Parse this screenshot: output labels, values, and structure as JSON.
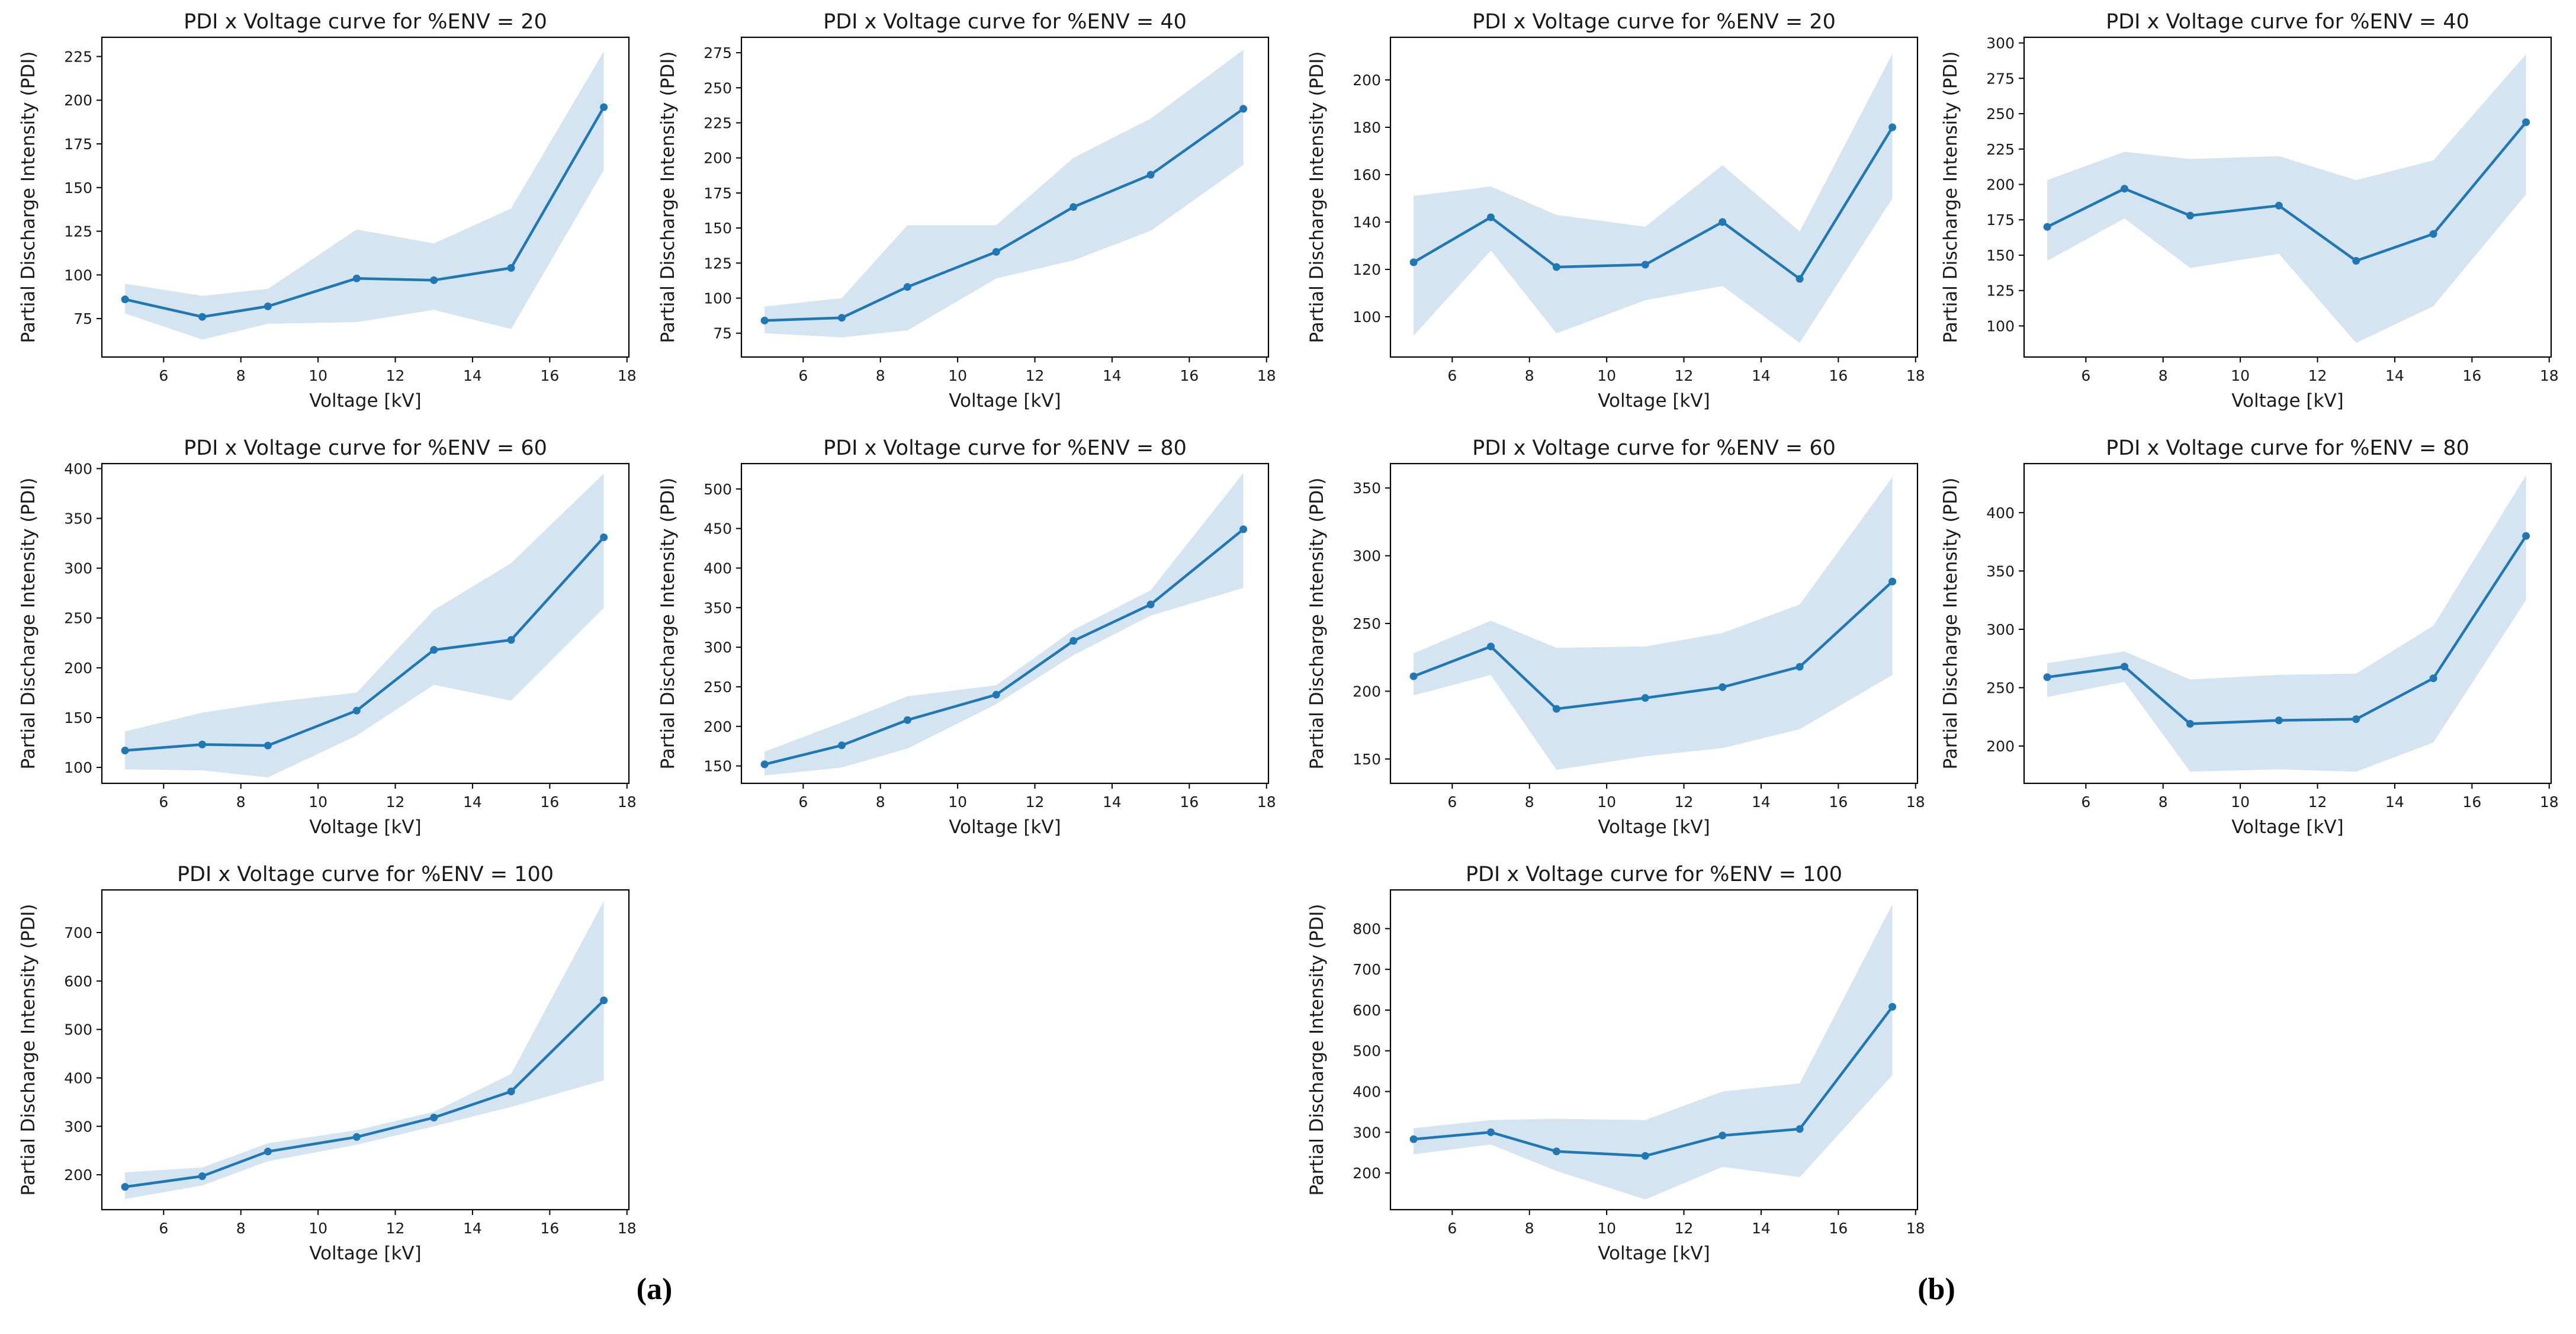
{
  "figure": {
    "xlabel": "Voltage [kV]",
    "ylabel": "Partial Discharge Intensity (PDI)",
    "panel_a_label": "(a)",
    "panel_b_label": "(b)",
    "line_color": "#1f77b4",
    "band_color": "#d4e4f1",
    "spine_color": "#000000",
    "text_color": "#1a1a1a",
    "background": "#ffffff"
  },
  "chart_data": [
    {
      "type": "line",
      "panel": "a",
      "env": 20,
      "title": "PDI x Voltage curve for %ENV = 20",
      "xlabel": "Voltage [kV]",
      "ylabel": "Partial Discharge Intensity (PDI)",
      "x": [
        5,
        7,
        8.7,
        11,
        13,
        15,
        17.4
      ],
      "mean": [
        86,
        76,
        82,
        98,
        97,
        104,
        196
      ],
      "band_lower": [
        78,
        63,
        72,
        73,
        80,
        69,
        160
      ],
      "band_upper": [
        95,
        88,
        92,
        126,
        118,
        138,
        228
      ],
      "x_ticks": [
        6,
        8,
        10,
        12,
        14,
        16,
        18
      ],
      "xlim": [
        4.4,
        18.05
      ],
      "y_ticks": [
        75,
        100,
        125,
        150,
        175,
        200,
        225
      ],
      "ylim": [
        53,
        236
      ]
    },
    {
      "type": "line",
      "panel": "a",
      "env": 40,
      "title": "PDI x Voltage curve for %ENV = 40",
      "xlabel": "Voltage [kV]",
      "ylabel": "Partial Discharge Intensity (PDI)",
      "x": [
        5,
        7,
        8.7,
        11,
        13,
        15,
        17.4
      ],
      "mean": [
        84,
        86,
        108,
        133,
        165,
        188,
        235
      ],
      "band_lower": [
        75,
        72,
        77,
        114,
        127,
        148,
        195
      ],
      "band_upper": [
        94,
        100,
        152,
        152,
        200,
        228,
        277
      ],
      "x_ticks": [
        6,
        8,
        10,
        12,
        14,
        16,
        18
      ],
      "xlim": [
        4.4,
        18.05
      ],
      "y_ticks": [
        75,
        100,
        125,
        150,
        175,
        200,
        225,
        250,
        275
      ],
      "ylim": [
        58,
        286
      ]
    },
    {
      "type": "line",
      "panel": "a",
      "env": 60,
      "title": "PDI x Voltage curve for %ENV = 60",
      "xlabel": "Voltage [kV]",
      "ylabel": "Partial Discharge Intensity (PDI)",
      "x": [
        5,
        7,
        8.7,
        11,
        13,
        15,
        17.4
      ],
      "mean": [
        117,
        123,
        122,
        157,
        218,
        228,
        331
      ],
      "band_lower": [
        98,
        97,
        90,
        132,
        183,
        167,
        260
      ],
      "band_upper": [
        136,
        155,
        165,
        175,
        258,
        305,
        395
      ],
      "x_ticks": [
        6,
        8,
        10,
        12,
        14,
        16,
        18
      ],
      "xlim": [
        4.4,
        18.05
      ],
      "y_ticks": [
        100,
        150,
        200,
        250,
        300,
        350,
        400
      ],
      "ylim": [
        84,
        405
      ]
    },
    {
      "type": "line",
      "panel": "a",
      "env": 80,
      "title": "PDI x Voltage curve for %ENV = 80",
      "xlabel": "Voltage [kV]",
      "ylabel": "Partial Discharge Intensity (PDI)",
      "x": [
        5,
        7,
        8.7,
        11,
        13,
        15,
        17.4
      ],
      "mean": [
        152,
        176,
        208,
        240,
        308,
        354,
        449
      ],
      "band_lower": [
        138,
        148,
        172,
        228,
        290,
        340,
        375
      ],
      "band_upper": [
        168,
        205,
        238,
        252,
        322,
        372,
        520
      ],
      "x_ticks": [
        6,
        8,
        10,
        12,
        14,
        16,
        18
      ],
      "xlim": [
        4.4,
        18.05
      ],
      "y_ticks": [
        150,
        200,
        250,
        300,
        350,
        400,
        450,
        500
      ],
      "ylim": [
        128,
        532
      ]
    },
    {
      "type": "line",
      "panel": "a",
      "env": 100,
      "title": "PDI x Voltage curve for %ENV = 100",
      "xlabel": "Voltage [kV]",
      "ylabel": "Partial Discharge Intensity (PDI)",
      "x": [
        5,
        7,
        8.7,
        11,
        13,
        15,
        17.4
      ],
      "mean": [
        175,
        197,
        248,
        278,
        318,
        372,
        560
      ],
      "band_lower": [
        150,
        178,
        228,
        262,
        300,
        340,
        395
      ],
      "band_upper": [
        205,
        215,
        265,
        292,
        330,
        408,
        765
      ],
      "x_ticks": [
        6,
        8,
        10,
        12,
        14,
        16,
        18
      ],
      "xlim": [
        4.4,
        18.05
      ],
      "y_ticks": [
        200,
        300,
        400,
        500,
        600,
        700
      ],
      "ylim": [
        128,
        788
      ]
    },
    {
      "type": "line",
      "panel": "b",
      "env": 20,
      "title": "PDI x Voltage curve for %ENV = 20",
      "xlabel": "Voltage [kV]",
      "ylabel": "Partial Discharge Intensity (PDI)",
      "x": [
        5,
        7,
        8.7,
        11,
        13,
        15,
        17.4
      ],
      "mean": [
        123,
        142,
        121,
        122,
        140,
        116,
        180
      ],
      "band_lower": [
        92,
        128,
        93,
        107,
        113,
        89,
        150
      ],
      "band_upper": [
        151,
        155,
        143,
        138,
        164,
        136,
        211
      ],
      "x_ticks": [
        6,
        8,
        10,
        12,
        14,
        16,
        18
      ],
      "xlim": [
        4.4,
        18.05
      ],
      "y_ticks": [
        100,
        120,
        140,
        160,
        180,
        200
      ],
      "ylim": [
        83,
        218
      ]
    },
    {
      "type": "line",
      "panel": "b",
      "env": 40,
      "title": "PDI x Voltage curve for %ENV = 40",
      "xlabel": "Voltage [kV]",
      "ylabel": "Partial Discharge Intensity (PDI)",
      "x": [
        5,
        7,
        8.7,
        11,
        13,
        15,
        17.4
      ],
      "mean": [
        170,
        197,
        178,
        185,
        146,
        165,
        244
      ],
      "band_lower": [
        146,
        176,
        141,
        151,
        88,
        114,
        193
      ],
      "band_upper": [
        203,
        223,
        218,
        220,
        203,
        217,
        292
      ],
      "x_ticks": [
        6,
        8,
        10,
        12,
        14,
        16,
        18
      ],
      "xlim": [
        4.4,
        18.05
      ],
      "y_ticks": [
        100,
        125,
        150,
        175,
        200,
        225,
        250,
        275,
        300
      ],
      "ylim": [
        78,
        304
      ]
    },
    {
      "type": "line",
      "panel": "b",
      "env": 60,
      "title": "PDI x Voltage curve for %ENV = 60",
      "xlabel": "Voltage [kV]",
      "ylabel": "Partial Discharge Intensity (PDI)",
      "x": [
        5,
        7,
        8.7,
        11,
        13,
        15,
        17.4
      ],
      "mean": [
        211,
        233,
        187,
        195,
        203,
        218,
        281
      ],
      "band_lower": [
        197,
        212,
        142,
        152,
        158,
        172,
        212
      ],
      "band_upper": [
        228,
        252,
        232,
        233,
        243,
        264,
        358
      ],
      "x_ticks": [
        6,
        8,
        10,
        12,
        14,
        16,
        18
      ],
      "xlim": [
        4.4,
        18.05
      ],
      "y_ticks": [
        150,
        200,
        250,
        300,
        350
      ],
      "ylim": [
        132,
        368
      ]
    },
    {
      "type": "line",
      "panel": "b",
      "env": 80,
      "title": "PDI x Voltage curve for %ENV = 80",
      "xlabel": "Voltage [kV]",
      "ylabel": "Partial Discharge Intensity (PDI)",
      "x": [
        5,
        7,
        8.7,
        11,
        13,
        15,
        17.4
      ],
      "mean": [
        259,
        268,
        219,
        222,
        223,
        258,
        380
      ],
      "band_lower": [
        242,
        255,
        178,
        180,
        178,
        203,
        325
      ],
      "band_upper": [
        271,
        281,
        257,
        261,
        262,
        303,
        432
      ],
      "x_ticks": [
        6,
        8,
        10,
        12,
        14,
        16,
        18
      ],
      "xlim": [
        4.4,
        18.05
      ],
      "y_ticks": [
        200,
        250,
        300,
        350,
        400
      ],
      "ylim": [
        168,
        442
      ]
    },
    {
      "type": "line",
      "panel": "b",
      "env": 100,
      "title": "PDI x Voltage curve for %ENV = 100",
      "xlabel": "Voltage [kV]",
      "ylabel": "Partial Discharge Intensity (PDI)",
      "x": [
        5,
        7,
        8.7,
        11,
        13,
        15,
        17.4
      ],
      "mean": [
        283,
        300,
        253,
        242,
        292,
        308,
        608
      ],
      "band_lower": [
        246,
        270,
        205,
        135,
        215,
        190,
        440
      ],
      "band_upper": [
        310,
        330,
        333,
        330,
        400,
        420,
        860
      ],
      "x_ticks": [
        6,
        8,
        10,
        12,
        14,
        16,
        18
      ],
      "xlim": [
        4.4,
        18.05
      ],
      "y_ticks": [
        200,
        300,
        400,
        500,
        600,
        700,
        800
      ],
      "ylim": [
        110,
        895
      ]
    }
  ]
}
